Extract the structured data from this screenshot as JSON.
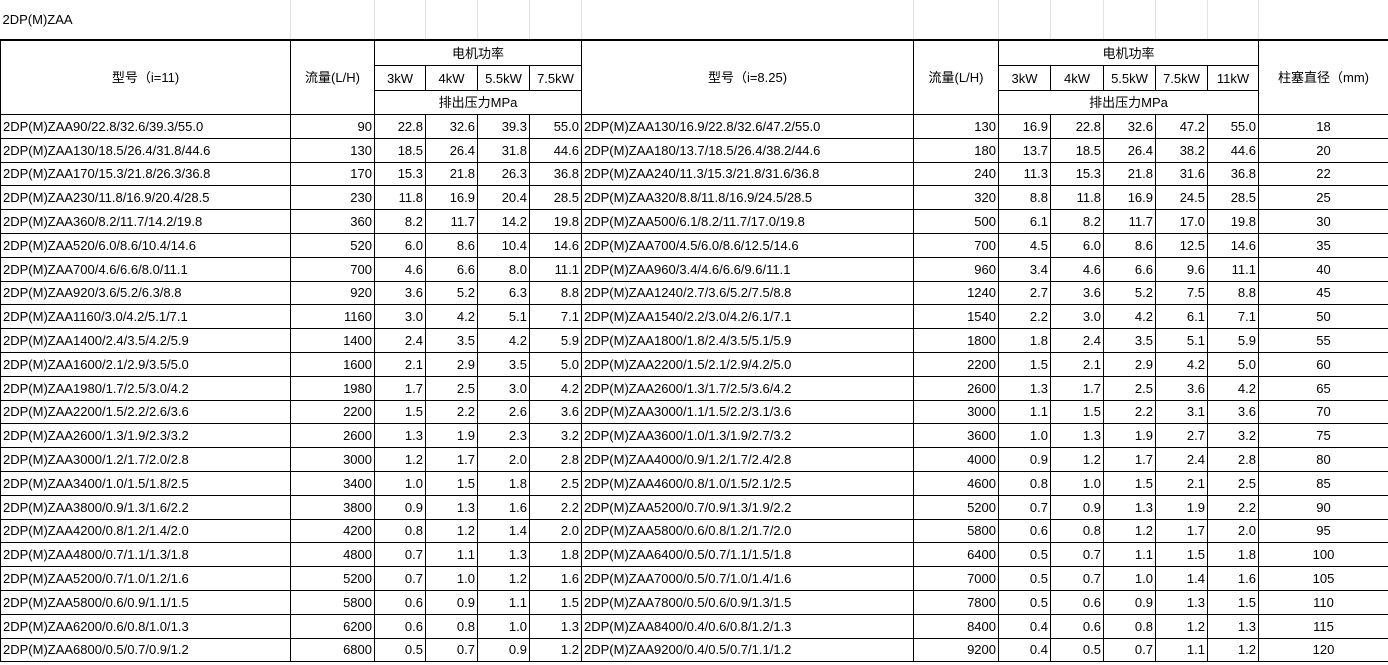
{
  "title": "2DP(M)ZAA",
  "headers": {
    "left_model": "型号（i=11)",
    "flow": "流量(L/H)",
    "motor_power": "电机功率",
    "pressure": "排出压力MPa",
    "right_model": "型号（i=8.25)",
    "plunger_diameter": "柱塞直径（mm)",
    "left_powers": [
      "3kW",
      "4kW",
      "5.5kW",
      "7.5kW"
    ],
    "right_powers": [
      "3kW",
      "4kW",
      "5.5kW",
      "7.5kW",
      "11kW"
    ]
  },
  "left_rows": [
    [
      "2DP(M)ZAA90/22.8/32.6/39.3/55.0",
      "90",
      "22.8",
      "32.6",
      "39.3",
      "55.0"
    ],
    [
      "2DP(M)ZAA130/18.5/26.4/31.8/44.6",
      "130",
      "18.5",
      "26.4",
      "31.8",
      "44.6"
    ],
    [
      "2DP(M)ZAA170/15.3/21.8/26.3/36.8",
      "170",
      "15.3",
      "21.8",
      "26.3",
      "36.8"
    ],
    [
      "2DP(M)ZAA230/11.8/16.9/20.4/28.5",
      "230",
      "11.8",
      "16.9",
      "20.4",
      "28.5"
    ],
    [
      "2DP(M)ZAA360/8.2/11.7/14.2/19.8",
      "360",
      "8.2",
      "11.7",
      "14.2",
      "19.8"
    ],
    [
      "2DP(M)ZAA520/6.0/8.6/10.4/14.6",
      "520",
      "6.0",
      "8.6",
      "10.4",
      "14.6"
    ],
    [
      "2DP(M)ZAA700/4.6/6.6/8.0/11.1",
      "700",
      "4.6",
      "6.6",
      "8.0",
      "11.1"
    ],
    [
      "2DP(M)ZAA920/3.6/5.2/6.3/8.8",
      "920",
      "3.6",
      "5.2",
      "6.3",
      "8.8"
    ],
    [
      "2DP(M)ZAA1160/3.0/4.2/5.1/7.1",
      "1160",
      "3.0",
      "4.2",
      "5.1",
      "7.1"
    ],
    [
      "2DP(M)ZAA1400/2.4/3.5/4.2/5.9",
      "1400",
      "2.4",
      "3.5",
      "4.2",
      "5.9"
    ],
    [
      "2DP(M)ZAA1600/2.1/2.9/3.5/5.0",
      "1600",
      "2.1",
      "2.9",
      "3.5",
      "5.0"
    ],
    [
      "2DP(M)ZAA1980/1.7/2.5/3.0/4.2",
      "1980",
      "1.7",
      "2.5",
      "3.0",
      "4.2"
    ],
    [
      "2DP(M)ZAA2200/1.5/2.2/2.6/3.6",
      "2200",
      "1.5",
      "2.2",
      "2.6",
      "3.6"
    ],
    [
      "2DP(M)ZAA2600/1.3/1.9/2.3/3.2",
      "2600",
      "1.3",
      "1.9",
      "2.3",
      "3.2"
    ],
    [
      "2DP(M)ZAA3000/1.2/1.7/2.0/2.8",
      "3000",
      "1.2",
      "1.7",
      "2.0",
      "2.8"
    ],
    [
      "2DP(M)ZAA3400/1.0/1.5/1.8/2.5",
      "3400",
      "1.0",
      "1.5",
      "1.8",
      "2.5"
    ],
    [
      "2DP(M)ZAA3800/0.9/1.3/1.6/2.2",
      "3800",
      "0.9",
      "1.3",
      "1.6",
      "2.2"
    ],
    [
      "2DP(M)ZAA4200/0.8/1.2/1.4/2.0",
      "4200",
      "0.8",
      "1.2",
      "1.4",
      "2.0"
    ],
    [
      "2DP(M)ZAA4800/0.7/1.1/1.3/1.8",
      "4800",
      "0.7",
      "1.1",
      "1.3",
      "1.8"
    ],
    [
      "2DP(M)ZAA5200/0.7/1.0/1.2/1.6",
      "5200",
      "0.7",
      "1.0",
      "1.2",
      "1.6"
    ],
    [
      "2DP(M)ZAA5800/0.6/0.9/1.1/1.5",
      "5800",
      "0.6",
      "0.9",
      "1.1",
      "1.5"
    ],
    [
      "2DP(M)ZAA6200/0.6/0.8/1.0/1.3",
      "6200",
      "0.6",
      "0.8",
      "1.0",
      "1.3"
    ],
    [
      "2DP(M)ZAA6800/0.5/0.7/0.9/1.2",
      "6800",
      "0.5",
      "0.7",
      "0.9",
      "1.2"
    ]
  ],
  "right_rows": [
    [
      "2DP(M)ZAA130/16.9/22.8/32.6/47.2/55.0",
      "130",
      "16.9",
      "22.8",
      "32.6",
      "47.2",
      "55.0",
      "18"
    ],
    [
      "2DP(M)ZAA180/13.7/18.5/26.4/38.2/44.6",
      "180",
      "13.7",
      "18.5",
      "26.4",
      "38.2",
      "44.6",
      "20"
    ],
    [
      "2DP(M)ZAA240/11.3/15.3/21.8/31.6/36.8",
      "240",
      "11.3",
      "15.3",
      "21.8",
      "31.6",
      "36.8",
      "22"
    ],
    [
      "2DP(M)ZAA320/8.8/11.8/16.9/24.5/28.5",
      "320",
      "8.8",
      "11.8",
      "16.9",
      "24.5",
      "28.5",
      "25"
    ],
    [
      "2DP(M)ZAA500/6.1/8.2/11.7/17.0/19.8",
      "500",
      "6.1",
      "8.2",
      "11.7",
      "17.0",
      "19.8",
      "30"
    ],
    [
      "2DP(M)ZAA700/4.5/6.0/8.6/12.5/14.6",
      "700",
      "4.5",
      "6.0",
      "8.6",
      "12.5",
      "14.6",
      "35"
    ],
    [
      "2DP(M)ZAA960/3.4/4.6/6.6/9.6/11.1",
      "960",
      "3.4",
      "4.6",
      "6.6",
      "9.6",
      "11.1",
      "40"
    ],
    [
      "2DP(M)ZAA1240/2.7/3.6/5.2/7.5/8.8",
      "1240",
      "2.7",
      "3.6",
      "5.2",
      "7.5",
      "8.8",
      "45"
    ],
    [
      "2DP(M)ZAA1540/2.2/3.0/4.2/6.1/7.1",
      "1540",
      "2.2",
      "3.0",
      "4.2",
      "6.1",
      "7.1",
      "50"
    ],
    [
      "2DP(M)ZAA1800/1.8/2.4/3.5/5.1/5.9",
      "1800",
      "1.8",
      "2.4",
      "3.5",
      "5.1",
      "5.9",
      "55"
    ],
    [
      "2DP(M)ZAA2200/1.5/2.1/2.9/4.2/5.0",
      "2200",
      "1.5",
      "2.1",
      "2.9",
      "4.2",
      "5.0",
      "60"
    ],
    [
      "2DP(M)ZAA2600/1.3/1.7/2.5/3.6/4.2",
      "2600",
      "1.3",
      "1.7",
      "2.5",
      "3.6",
      "4.2",
      "65"
    ],
    [
      "2DP(M)ZAA3000/1.1/1.5/2.2/3.1/3.6",
      "3000",
      "1.1",
      "1.5",
      "2.2",
      "3.1",
      "3.6",
      "70"
    ],
    [
      "2DP(M)ZAA3600/1.0/1.3/1.9/2.7/3.2",
      "3600",
      "1.0",
      "1.3",
      "1.9",
      "2.7",
      "3.2",
      "75"
    ],
    [
      "2DP(M)ZAA4000/0.9/1.2/1.7/2.4/2.8",
      "4000",
      "0.9",
      "1.2",
      "1.7",
      "2.4",
      "2.8",
      "80"
    ],
    [
      "2DP(M)ZAA4600/0.8/1.0/1.5/2.1/2.5",
      "4600",
      "0.8",
      "1.0",
      "1.5",
      "2.1",
      "2.5",
      "85"
    ],
    [
      "2DP(M)ZAA5200/0.7/0.9/1.3/1.9/2.2",
      "5200",
      "0.7",
      "0.9",
      "1.3",
      "1.9",
      "2.2",
      "90"
    ],
    [
      "2DP(M)ZAA5800/0.6/0.8/1.2/1.7/2.0",
      "5800",
      "0.6",
      "0.8",
      "1.2",
      "1.7",
      "2.0",
      "95"
    ],
    [
      "2DP(M)ZAA6400/0.5/0.7/1.1/1.5/1.8",
      "6400",
      "0.5",
      "0.7",
      "1.1",
      "1.5",
      "1.8",
      "100"
    ],
    [
      "2DP(M)ZAA7000/0.5/0.7/1.0/1.4/1.6",
      "7000",
      "0.5",
      "0.7",
      "1.0",
      "1.4",
      "1.6",
      "105"
    ],
    [
      "2DP(M)ZAA7800/0.5/0.6/0.9/1.3/1.5",
      "7800",
      "0.5",
      "0.6",
      "0.9",
      "1.3",
      "1.5",
      "110"
    ],
    [
      "2DP(M)ZAA8400/0.4/0.6/0.8/1.2/1.3",
      "8400",
      "0.4",
      "0.6",
      "0.8",
      "1.2",
      "1.3",
      "115"
    ],
    [
      "2DP(M)ZAA9200/0.4/0.5/0.7/1.1/1.2",
      "9200",
      "0.4",
      "0.5",
      "0.7",
      "1.1",
      "1.2",
      "120"
    ]
  ]
}
